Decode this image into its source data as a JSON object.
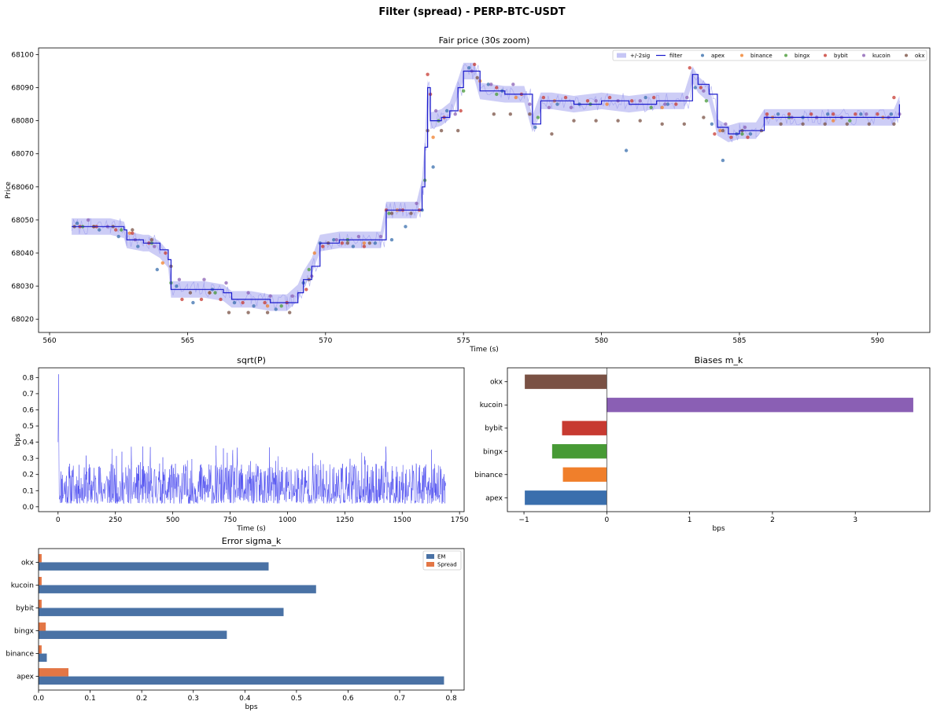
{
  "figure": {
    "suptitle": "Filter (spread) - PERP-BTC-USDT"
  },
  "colors": {
    "apex": "#3a6fad",
    "binance": "#f07f2b",
    "bingx": "#479a35",
    "bybit": "#c73a31",
    "kucoin": "#8a5fb4",
    "okx": "#7a5144",
    "filter": "#1a1acc",
    "band": "#b8b8f2",
    "sqrt": "#4a4af0",
    "em": "#4a72a5",
    "spread": "#e37645"
  },
  "chart_data": [
    {
      "id": "fair",
      "type": "line",
      "title": "Fair price (30s zoom)",
      "xlabel": "Time (s)",
      "ylabel": "Price",
      "xlim": [
        559.6,
        591.9
      ],
      "ylim": [
        68016,
        68102
      ],
      "xticks": [
        560,
        565,
        570,
        575,
        580,
        585,
        590
      ],
      "yticks": [
        68020,
        68030,
        68040,
        68050,
        68060,
        68070,
        68080,
        68090,
        68100
      ],
      "legend": [
        "+/-2sig",
        "filter",
        "apex",
        "binance",
        "bingx",
        "bybit",
        "kucoin",
        "okx"
      ],
      "legend_position": "top-right",
      "series_filter": {
        "x": [
          560.8,
          561.5,
          562.2,
          562.7,
          562.8,
          563.4,
          563.6,
          564.0,
          564.3,
          564.4,
          565.0,
          565.6,
          566.3,
          566.6,
          567.3,
          568.0,
          568.6,
          569.0,
          569.2,
          569.5,
          569.8,
          570.5,
          571.3,
          572.0,
          572.2,
          572.8,
          573.3,
          573.5,
          573.6,
          573.7,
          573.8,
          574.2,
          574.5,
          574.8,
          575.0,
          575.4,
          575.6,
          576.5,
          577.2,
          577.5,
          577.8,
          578.2,
          579.0,
          580.0,
          581.0,
          582.0,
          583.0,
          583.3,
          583.5,
          583.9,
          584.2,
          584.6,
          585.0,
          585.6,
          585.9,
          586.5,
          587.5,
          588.5,
          589.5,
          590.3,
          590.6,
          590.8
        ],
        "y": [
          68048,
          68048,
          68048,
          68047,
          68044,
          68043,
          68043,
          68041,
          68038,
          68029,
          68029,
          68029,
          68028,
          68026,
          68026,
          68025,
          68025,
          68028,
          68032,
          68036,
          68043,
          68044,
          68044,
          68044,
          68053,
          68053,
          68053,
          68060,
          68072,
          68090,
          68080,
          68081,
          68083,
          68090,
          68095,
          68095,
          68089,
          68088,
          68088,
          68079,
          68086,
          68086,
          68085,
          68086,
          68085,
          68086,
          68086,
          68094,
          68091,
          68088,
          68078,
          68076,
          68077,
          68077,
          68081,
          68081,
          68081,
          68081,
          68081,
          68081,
          68081,
          68085
        ]
      },
      "series_points": [
        {
          "name": "apex",
          "x": [
            561.0,
            561.8,
            562.5,
            563.2,
            563.9,
            564.6,
            565.2,
            565.9,
            566.7,
            567.4,
            568.2,
            569.2,
            569.8,
            570.3,
            571.0,
            571.8,
            572.4,
            572.9,
            573.5,
            573.9,
            574.4,
            575.2,
            575.9,
            576.4,
            577.6,
            578.4,
            579.2,
            580.9,
            581.6,
            582.4,
            583.4,
            584.0,
            584.4,
            584.9,
            585.4,
            586.4,
            587.3,
            588.2,
            589.4,
            590.5
          ],
          "y": [
            68049,
            68047,
            68045,
            68042,
            68035,
            68030,
            68025,
            68029,
            68025,
            68024,
            68023,
            68031,
            68043,
            68044,
            68042,
            68043,
            68044,
            68048,
            68053,
            68066,
            68083,
            68096,
            68091,
            68089,
            68078,
            68085,
            68085,
            68071,
            68087,
            68085,
            68090,
            68079,
            68068,
            68076,
            68076,
            68082,
            68081,
            68082,
            68082,
            68082
          ]
        },
        {
          "name": "binance",
          "x": [
            561.6,
            562.9,
            564.1,
            565.8,
            567.9,
            569.6,
            571.4,
            572.6,
            573.9,
            575.6,
            576.9,
            578.3,
            580.2,
            582.2,
            584.3,
            586.2,
            588.4,
            590.2
          ],
          "y": [
            68048,
            68046,
            68037,
            68028,
            68024,
            68040,
            68043,
            68053,
            68075,
            68092,
            68087,
            68086,
            68085,
            68084,
            68077,
            68081,
            68080,
            68081
          ]
        },
        {
          "name": "bingx",
          "x": [
            561.2,
            562.6,
            563.7,
            564.4,
            566.0,
            568.4,
            569.4,
            570.8,
            572.3,
            573.6,
            574.1,
            575.0,
            576.2,
            577.7,
            579.6,
            581.8,
            583.8,
            585.1,
            586.8,
            589.0
          ],
          "y": [
            68048,
            68047,
            68043,
            68031,
            68028,
            68024,
            68035,
            68044,
            68052,
            68062,
            68080,
            68089,
            68088,
            68081,
            68085,
            68084,
            68086,
            68076,
            68081,
            68080
          ]
        },
        {
          "name": "bybit",
          "x": [
            561.1,
            561.7,
            562.4,
            563.0,
            563.6,
            564.2,
            564.8,
            565.5,
            566.2,
            567.0,
            567.8,
            568.6,
            569.3,
            569.9,
            570.6,
            571.4,
            572.2,
            572.8,
            573.4,
            573.7,
            573.8,
            574.3,
            574.9,
            575.4,
            576.2,
            577.1,
            577.9,
            578.7,
            579.5,
            580.3,
            581.1,
            581.9,
            582.7,
            583.2,
            583.6,
            584.1,
            584.7,
            585.3,
            586.0,
            586.8,
            587.6,
            588.4,
            589.2,
            590.0,
            590.6
          ],
          "y": [
            68048,
            68048,
            68047,
            68046,
            68043,
            68040,
            68026,
            68026,
            68026,
            68025,
            68025,
            68025,
            68029,
            68042,
            68043,
            68042,
            68053,
            68053,
            68053,
            68094,
            68088,
            68081,
            68083,
            68097,
            68090,
            68088,
            68087,
            68087,
            68086,
            68087,
            68086,
            68087,
            68085,
            68096,
            68090,
            68076,
            68075,
            68075,
            68082,
            68082,
            68082,
            68082,
            68082,
            68082,
            68087
          ]
        },
        {
          "name": "kucoin",
          "x": [
            561.4,
            562.1,
            563.1,
            563.8,
            564.7,
            565.6,
            566.4,
            567.2,
            568.0,
            568.8,
            569.5,
            570.4,
            571.2,
            572.0,
            572.7,
            573.3,
            574.0,
            574.7,
            575.3,
            576.0,
            576.8,
            577.4,
            578.1,
            578.9,
            579.8,
            580.6,
            581.4,
            582.3,
            583.1,
            583.7,
            584.5,
            585.2,
            586.0,
            586.9,
            587.8,
            588.7,
            589.6,
            590.4,
            590.8
          ],
          "y": [
            68050,
            68048,
            68044,
            68042,
            68032,
            68032,
            68031,
            68028,
            68027,
            68027,
            68033,
            68044,
            68045,
            68045,
            68053,
            68055,
            68083,
            68082,
            68095,
            68091,
            68091,
            68085,
            68084,
            68084,
            68086,
            68086,
            68086,
            68085,
            68087,
            68089,
            68079,
            68078,
            68081,
            68081,
            68081,
            68081,
            68082,
            68081,
            68082
          ]
        },
        {
          "name": "okx",
          "x": [
            560.9,
            561.6,
            562.3,
            563.0,
            563.7,
            564.4,
            565.1,
            565.8,
            566.5,
            567.2,
            567.9,
            568.7,
            569.4,
            570.1,
            570.8,
            571.6,
            572.4,
            573.1,
            573.7,
            574.2,
            574.8,
            575.5,
            576.1,
            576.7,
            577.4,
            578.2,
            579.0,
            579.8,
            580.6,
            581.4,
            582.2,
            583.0,
            583.7,
            584.4,
            585.1,
            585.8,
            586.5,
            587.3,
            588.1,
            588.9,
            589.7,
            590.6
          ],
          "y": [
            68048,
            68048,
            68048,
            68047,
            68044,
            68036,
            68028,
            68028,
            68022,
            68022,
            68022,
            68022,
            68032,
            68043,
            68043,
            68043,
            68052,
            68052,
            68077,
            68077,
            68077,
            68093,
            68082,
            68082,
            68082,
            68076,
            68080,
            68080,
            68080,
            68080,
            68079,
            68079,
            68081,
            68077,
            68077,
            68077,
            68079,
            68079,
            68079,
            68079,
            68079,
            68079
          ]
        }
      ]
    },
    {
      "id": "sqrtp",
      "type": "line",
      "title": "sqrt(P)",
      "xlabel": "Time (s)",
      "ylabel": "bps",
      "xlim": [
        -85,
        1770
      ],
      "ylim": [
        -0.03,
        0.86
      ],
      "xticks": [
        0,
        250,
        500,
        750,
        1000,
        1250,
        1500,
        1750
      ],
      "yticks": [
        0.0,
        0.1,
        0.2,
        0.3,
        0.4,
        0.5,
        0.6,
        0.7,
        0.8
      ],
      "series": [
        {
          "name": "sqrt(P)",
          "peak": {
            "x": 2,
            "y": 0.82
          },
          "n_points": 1200,
          "x_end": 1690,
          "typical_range": [
            0.02,
            0.38
          ]
        }
      ]
    },
    {
      "id": "bias",
      "type": "bar",
      "orientation": "horizontal",
      "title": "Biases m_k",
      "xlabel": "bps",
      "xlim": [
        -1.2,
        3.9
      ],
      "xticks": [
        -1,
        0,
        1,
        2,
        3
      ],
      "categories": [
        "apex",
        "binance",
        "bingx",
        "bybit",
        "kucoin",
        "okx"
      ],
      "values": [
        -0.99,
        -0.53,
        -0.66,
        -0.54,
        3.7,
        -0.99
      ]
    },
    {
      "id": "sigma",
      "type": "bar",
      "orientation": "horizontal",
      "title": "Error sigma_k",
      "xlabel": "bps",
      "xlim": [
        0,
        0.825
      ],
      "xticks": [
        0.0,
        0.1,
        0.2,
        0.3,
        0.4,
        0.5,
        0.6,
        0.7,
        0.8
      ],
      "categories": [
        "apex",
        "binance",
        "bingx",
        "bybit",
        "kucoin",
        "okx"
      ],
      "series": [
        {
          "name": "EM",
          "values": [
            0.786,
            0.016,
            0.365,
            0.475,
            0.538,
            0.446
          ]
        },
        {
          "name": "Spread",
          "values": [
            0.058,
            0.006,
            0.014,
            0.006,
            0.006,
            0.006
          ]
        }
      ],
      "legend_position": "top-right"
    }
  ]
}
